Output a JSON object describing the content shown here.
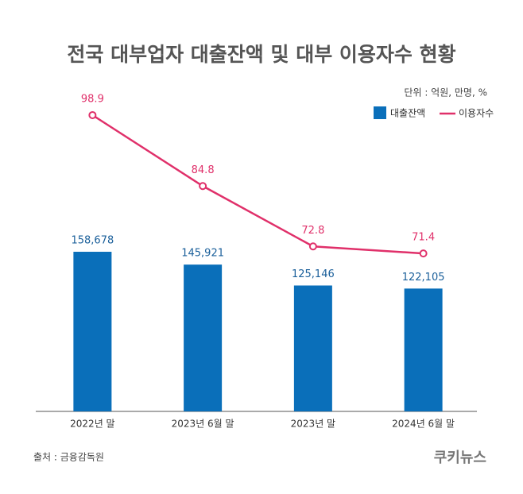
{
  "chart_data": {
    "type": "bar-line",
    "title": "전국 대부업자 대출잔액 및 대부 이용자수 현황",
    "unit_note": "단위 : 억원, 만명, %",
    "categories": [
      "2022년 말",
      "2023년 6월 말",
      "2023년 말",
      "2024년 6월 말"
    ],
    "series": [
      {
        "name": "대출잔액",
        "color": "#0a6fba",
        "type": "bar",
        "values": [
          158678,
          145921,
          125146,
          122105
        ],
        "value_labels": [
          "158,678",
          "145,921",
          "125,146",
          "122,105"
        ]
      },
      {
        "name": "이용자수",
        "color": "#e0306a",
        "type": "line",
        "axis": "y2",
        "values": [
          98.9,
          84.8,
          72.8,
          71.4
        ]
      }
    ],
    "ylim": [
      0,
      330000
    ],
    "y2lim": [
      40,
      106
    ],
    "source": "출처 : 금융감독원",
    "logo": "쿠키뉴스"
  }
}
